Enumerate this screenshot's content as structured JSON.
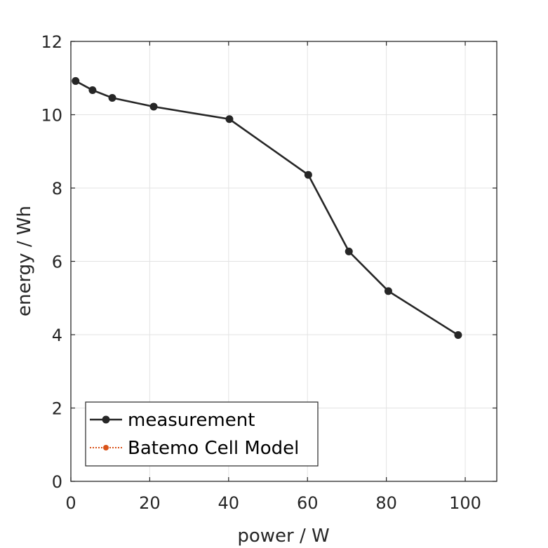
{
  "chart_data": {
    "type": "line",
    "xlabel": "power / W",
    "ylabel": "energy / Wh",
    "xlim": [
      0,
      108
    ],
    "ylim": [
      0,
      12
    ],
    "xticks": [
      0,
      20,
      40,
      60,
      80,
      100
    ],
    "yticks": [
      0,
      2,
      4,
      6,
      8,
      10,
      12
    ],
    "xtick_labels": [
      "0",
      "20",
      "40",
      "60",
      "80",
      "100"
    ],
    "ytick_labels": [
      "0",
      "2",
      "4",
      "6",
      "8",
      "10",
      "12"
    ],
    "grid": true,
    "legend_position": "bottom-left",
    "series": [
      {
        "name": "measurement",
        "color": "#262626",
        "style": "solid line with circle markers",
        "x": [
          1.2,
          5.5,
          10.5,
          21,
          40.2,
          60.2,
          70.5,
          80.5,
          98.2
        ],
        "y": [
          10.92,
          10.67,
          10.46,
          10.22,
          9.88,
          8.36,
          6.27,
          5.19,
          3.99
        ]
      },
      {
        "name": "Batemo Cell Model",
        "color": "#d95319",
        "style": "dotted line with circle markers",
        "x": [],
        "y": []
      }
    ]
  }
}
